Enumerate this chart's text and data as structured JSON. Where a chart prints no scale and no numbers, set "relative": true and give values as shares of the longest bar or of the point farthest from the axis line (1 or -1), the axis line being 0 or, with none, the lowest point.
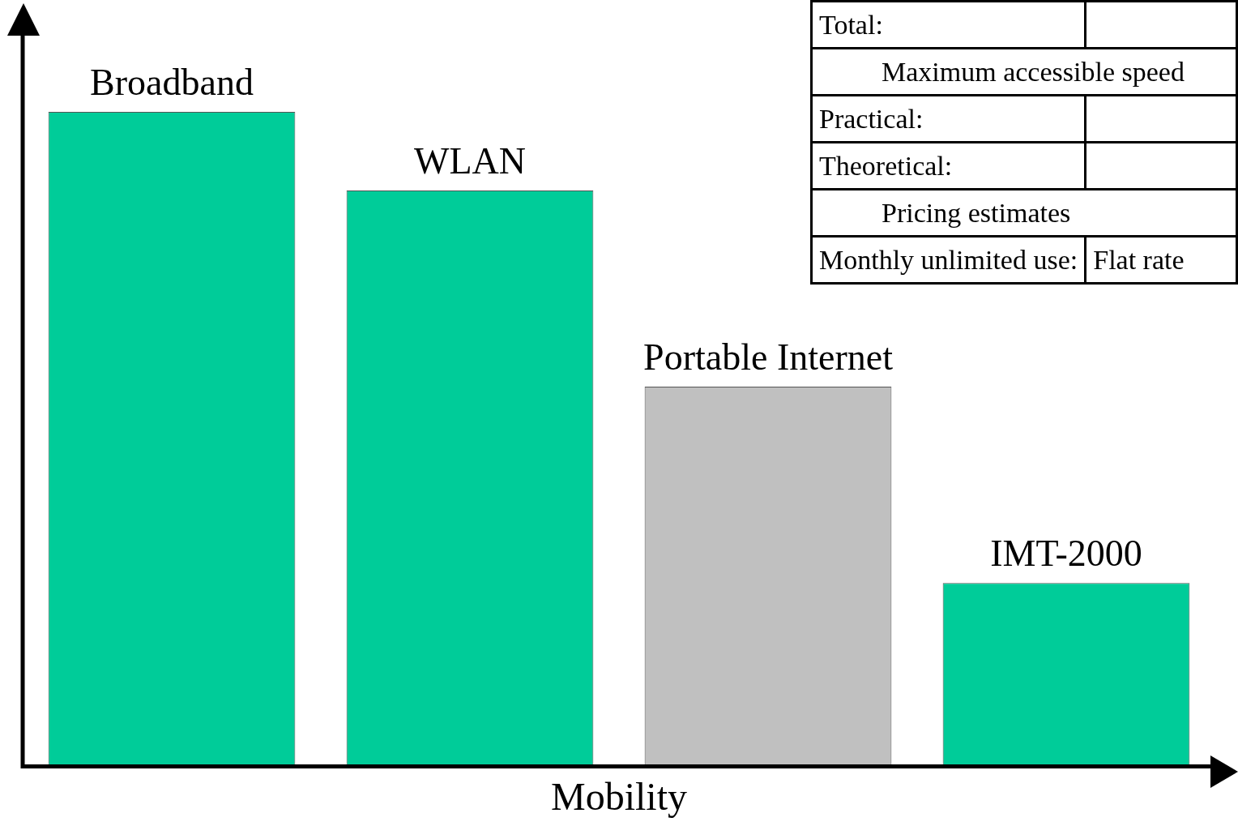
{
  "chart_data": {
    "type": "bar",
    "relative": true,
    "categories": [
      "Broadband",
      "WLAN",
      "Portable Internet",
      "IMT-2000"
    ],
    "values": [
      1,
      0.88,
      0.58,
      0.28
    ],
    "colors": [
      "#00cc99",
      "#00cc99",
      "#c0c0c0",
      "#00cc99"
    ],
    "xlabel": "Mobility",
    "annotations": [
      "Total:",
      "Maximum accessible speed",
      "Practical:",
      "Theoretical:",
      "Pricing estimates",
      "Monthly unlimited use:",
      "Flat rate"
    ]
  }
}
